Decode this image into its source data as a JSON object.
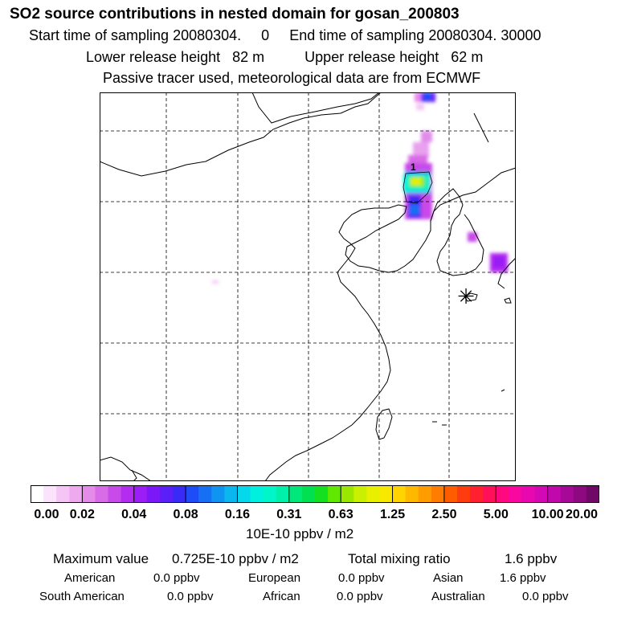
{
  "header": {
    "title": "SO2 source contributions in nested domain for gosan_200803",
    "sampling_start_label": "Start time of sampling",
    "sampling_start_value": "20080304.     0",
    "sampling_end_label": "End time of sampling",
    "sampling_end_value": "20080304. 30000",
    "lower_release_label": "Lower release height",
    "lower_release_value": "82 m",
    "upper_release_label": "Upper release height",
    "upper_release_value": "62 m",
    "note": "Passive tracer used, meteorological data are from ECMWF"
  },
  "map": {
    "contour_label": "1",
    "receptor_symbol": "✳"
  },
  "colorbar": {
    "unit_label": "10E-10 ppbv / m2",
    "ticks": [
      "0.00",
      "0.02",
      "0.04",
      "0.08",
      "0.16",
      "0.31",
      "0.63",
      "1.25",
      "2.50",
      "5.00",
      "10.00",
      "20.00"
    ],
    "colors": [
      [
        "#ffffff",
        "#fbe3fb",
        "#f5c6f5",
        "#efaaef"
      ],
      [
        "#e48ce8",
        "#d86be6",
        "#c84ae8",
        "#b42cf0"
      ],
      [
        "#9a1ef5",
        "#7c18f8",
        "#5b1ff8",
        "#3a2af8"
      ],
      [
        "#1e4cf6",
        "#1570f4",
        "#0f94f2",
        "#0ab8ef"
      ],
      [
        "#06d8ec",
        "#00f0e0",
        "#00f5c8",
        "#00f0aa"
      ],
      [
        "#00e87c",
        "#00e050",
        "#14e020",
        "#60e800"
      ],
      [
        "#9ae800",
        "#c8f000",
        "#e8f000",
        "#f8e800"
      ],
      [
        "#ffd400",
        "#ffb800",
        "#ff9c00",
        "#ff7c00"
      ],
      [
        "#ff5c00",
        "#ff3c10",
        "#ff2030",
        "#ff1058"
      ],
      [
        "#ff0880",
        "#f808a0",
        "#e808b0",
        "#d408b4"
      ],
      [
        "#c008ac",
        "#a80898",
        "#8e0880",
        "#700868"
      ]
    ]
  },
  "stats": {
    "max_label": "Maximum value",
    "max_value": "0.725E-10 ppbv / m2",
    "total_label": "Total mixing ratio",
    "total_value": "1.6 ppbv",
    "regions": [
      {
        "name": "American",
        "value": "0.0 ppbv"
      },
      {
        "name": "European",
        "value": "0.0 ppbv"
      },
      {
        "name": "Asian",
        "value": "1.6 ppbv"
      },
      {
        "name": "South American",
        "value": "0.0 ppbv"
      },
      {
        "name": "African",
        "value": "0.0 ppbv"
      },
      {
        "name": "Australian",
        "value": "0.0 ppbv"
      }
    ]
  }
}
